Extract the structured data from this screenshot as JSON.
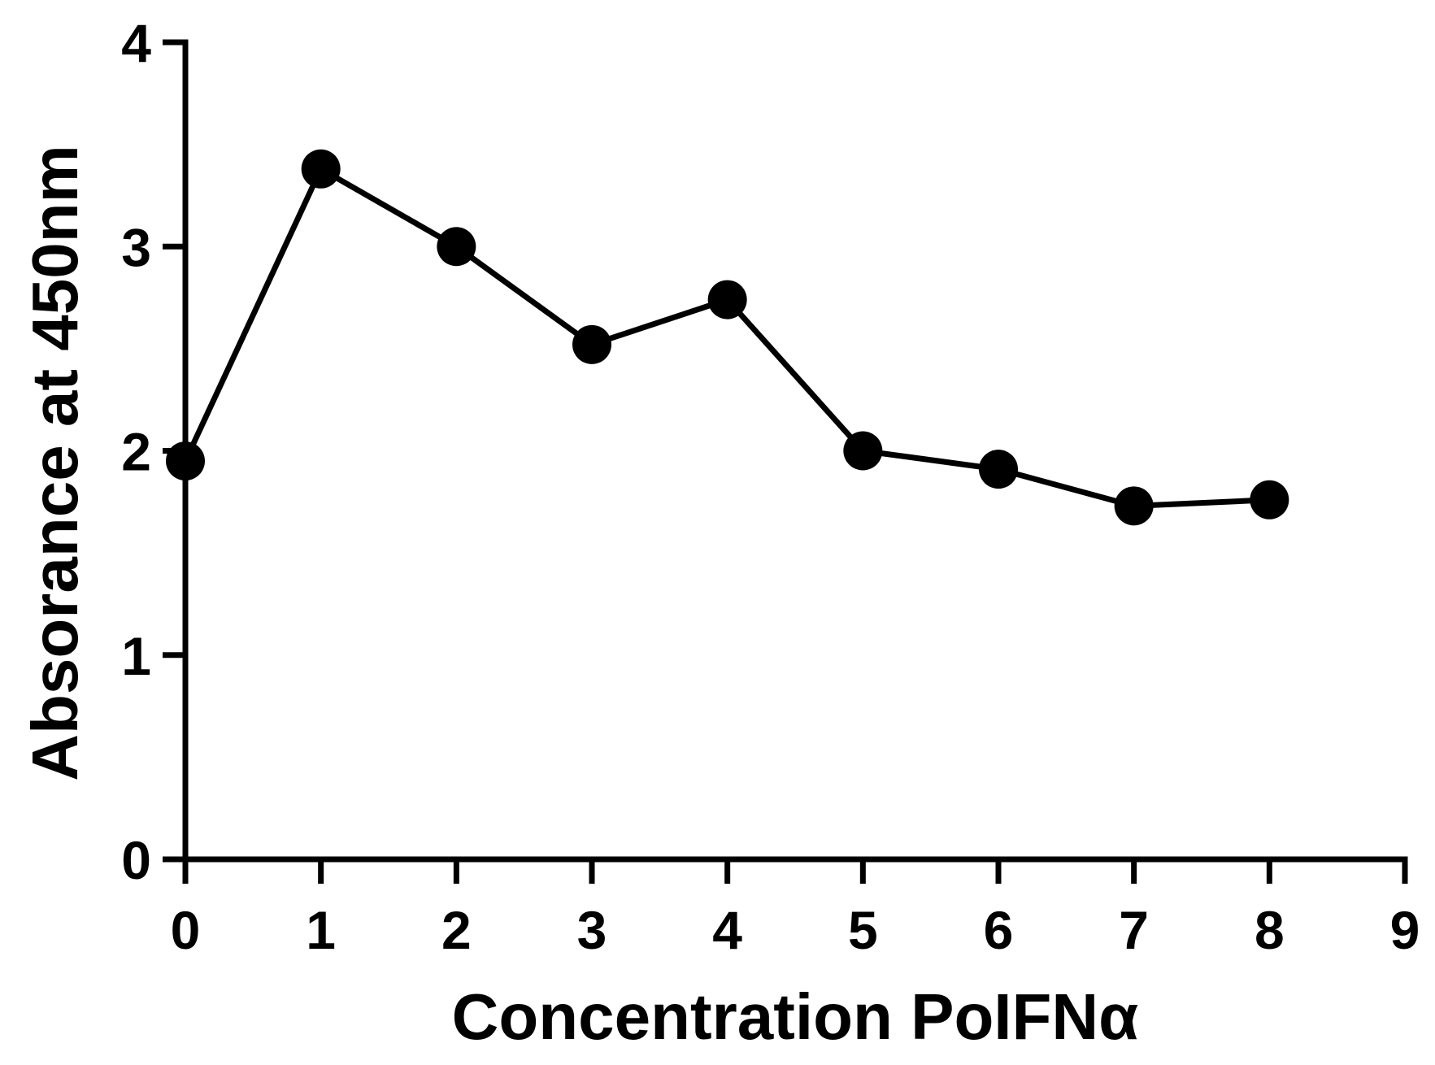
{
  "chart_data": {
    "type": "line",
    "title": "",
    "xlabel": "Concentration PoIFNα",
    "ylabel": "Absorance at 450nm",
    "xlim": [
      0,
      9
    ],
    "ylim": [
      0,
      4
    ],
    "x_ticks": [
      "0",
      "1",
      "2",
      "3",
      "4",
      "5",
      "6",
      "7",
      "8",
      "9"
    ],
    "y_ticks": [
      "0",
      "1",
      "2",
      "3",
      "4"
    ],
    "grid": false,
    "legend": "none",
    "color": "#000000",
    "series": [
      {
        "x": [
          0,
          1,
          2,
          3,
          4,
          5,
          6,
          7,
          8
        ],
        "values": [
          1.95,
          3.38,
          3.0,
          2.52,
          2.74,
          2.0,
          1.91,
          1.73,
          1.76
        ]
      }
    ]
  }
}
